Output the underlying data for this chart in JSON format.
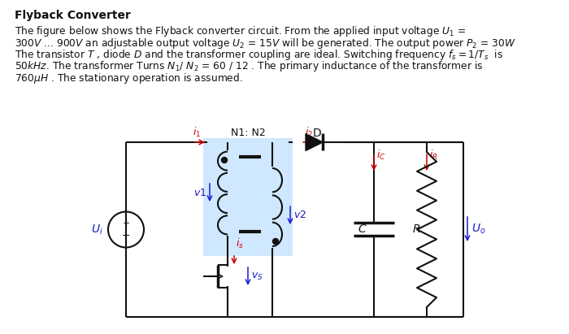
{
  "title": "Flyback Converter",
  "lines": [
    "The figure below shows the Flyback converter circuit. From the applied input voltage $U_1$ =",
    "300$V$ ... 900$V$ an adjustable output voltage $U_2$ = 15$V$ will be generated. The output power $P_2$ = 30$W$",
    "The transistor $T$ , diode $D$ and the transformer coupling are ideal. Switching frequency $f_s = 1/T_s$  is",
    "50$kHz$. The transformer Turns $N_1$/ $N_2$ = 60 / 12 . The primary inductance of the transformer is",
    "760$\\mu H$ . The stationary operation is assumed."
  ],
  "bg_color": "#ffffff",
  "blue_color": "#1a1acd",
  "red_color": "#cc0000",
  "black_color": "#111111",
  "circuit_bg": "#d0e8ff",
  "fig_width": 7.0,
  "fig_height": 4.11
}
